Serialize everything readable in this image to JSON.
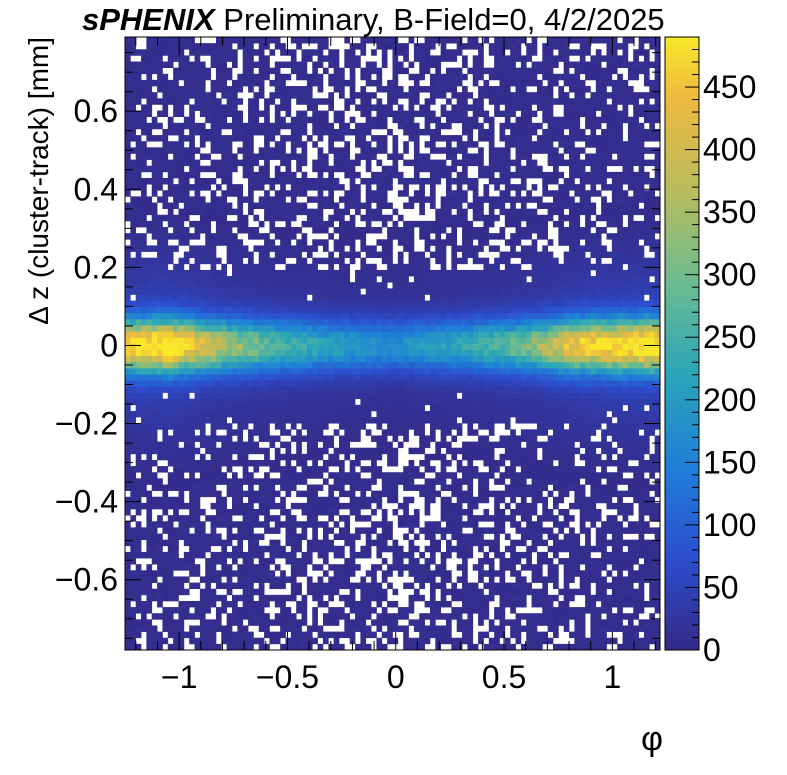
{
  "title": {
    "bold": "sPHENIX",
    "rest": " Preliminary, B-Field=0, 4/2/2025"
  },
  "chart_data": {
    "type": "heatmap",
    "xlabel": "φ",
    "ylabel": "Δ z (cluster-track) [mm]",
    "xlim": [
      -1.25,
      1.22
    ],
    "ylim": [
      -0.78,
      0.79
    ],
    "x_ticks": [
      {
        "value": -1,
        "label": "−1"
      },
      {
        "value": -0.5,
        "label": "−0.5"
      },
      {
        "value": 0,
        "label": "0"
      },
      {
        "value": 0.5,
        "label": "0.5"
      },
      {
        "value": 1,
        "label": "1"
      }
    ],
    "y_ticks": [
      {
        "value": 0.6,
        "label": "0.6"
      },
      {
        "value": 0.4,
        "label": "0.4"
      },
      {
        "value": 0.2,
        "label": "0.2"
      },
      {
        "value": 0,
        "label": "0"
      },
      {
        "value": -0.2,
        "label": "−0.2"
      },
      {
        "value": -0.4,
        "label": "−0.4"
      },
      {
        "value": -0.6,
        "label": "−0.6"
      }
    ],
    "z_range": [
      0,
      490
    ],
    "z_ticks": [
      {
        "value": 0,
        "label": "0"
      },
      {
        "value": 50,
        "label": "50"
      },
      {
        "value": 100,
        "label": "100"
      },
      {
        "value": 150,
        "label": "150"
      },
      {
        "value": 200,
        "label": "200"
      },
      {
        "value": 250,
        "label": "250"
      },
      {
        "value": 300,
        "label": "300"
      },
      {
        "value": 350,
        "label": "350"
      },
      {
        "value": 400,
        "label": "400"
      },
      {
        "value": 450,
        "label": "450"
      }
    ],
    "band": {
      "center_dz": 0.0,
      "peak_counts_by_phi": [
        [
          -1.25,
          420
        ],
        [
          -1.05,
          470
        ],
        [
          -0.85,
          330
        ],
        [
          -0.6,
          240
        ],
        [
          -0.3,
          180
        ],
        [
          0.0,
          150
        ],
        [
          0.3,
          190
        ],
        [
          0.6,
          260
        ],
        [
          0.85,
          400
        ],
        [
          1.05,
          440
        ],
        [
          1.22,
          470
        ]
      ],
      "sigma_dz": 0.045,
      "tail_sigma_dz": 0.16,
      "empty_bin_fraction_far_from_center": 0.25
    },
    "palette": [
      "#352a87",
      "#2c4ecf",
      "#1f7fd8",
      "#2aa6b8",
      "#6cbb8f",
      "#b8bc5c",
      "#eeb93f",
      "#f9e829"
    ],
    "grid": false,
    "colorbar": "right"
  }
}
